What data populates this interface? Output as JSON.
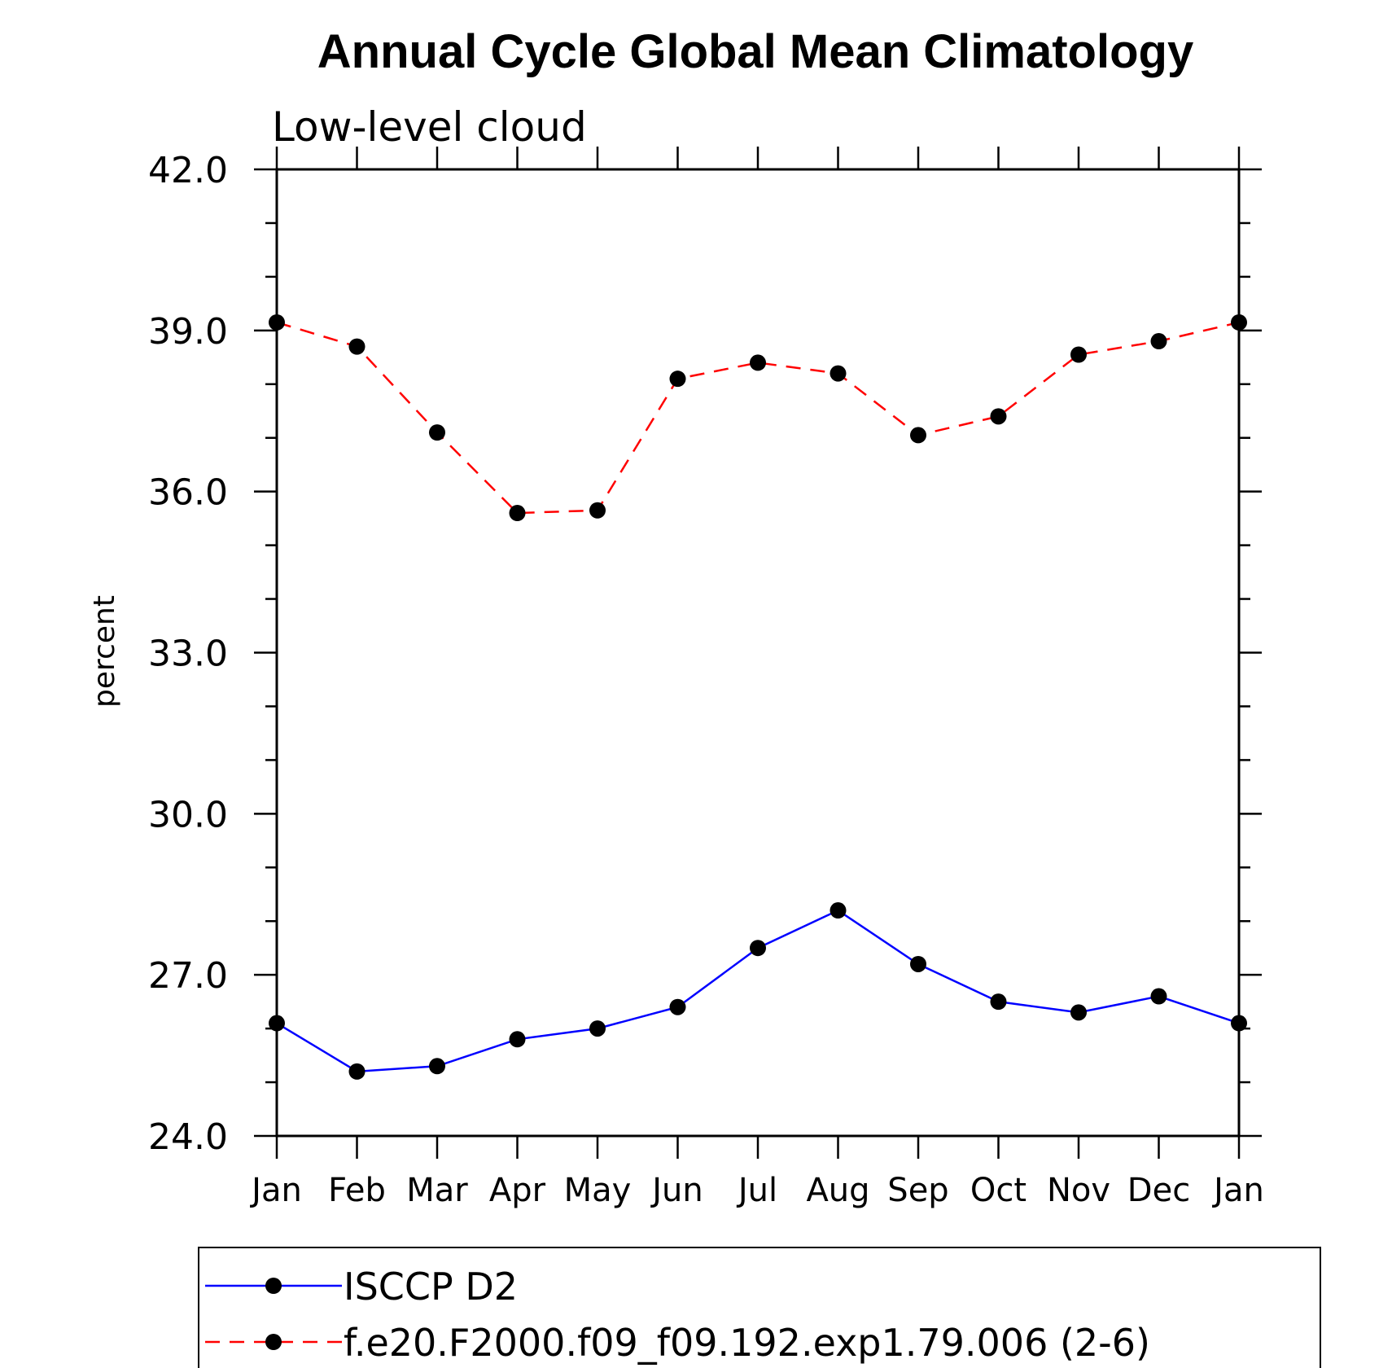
{
  "chart_data": {
    "type": "line",
    "title": "Annual Cycle Global Mean Climatology",
    "subtitle": "Low-level cloud",
    "xlabel": "",
    "ylabel": "percent",
    "categories": [
      "Jan",
      "Feb",
      "Mar",
      "Apr",
      "May",
      "Jun",
      "Jul",
      "Aug",
      "Sep",
      "Oct",
      "Nov",
      "Dec",
      "Jan"
    ],
    "ylim": [
      24.0,
      42.0
    ],
    "yticks": [
      "24.0",
      "27.0",
      "30.0",
      "33.0",
      "36.0",
      "39.0",
      "42.0"
    ],
    "grid": false,
    "legend_position": "bottom",
    "series": [
      {
        "name": "ISCCP D2",
        "color": "#0000ff",
        "line_style": "solid",
        "marker": "filled-circle",
        "values": [
          26.1,
          25.2,
          25.3,
          25.8,
          26.0,
          26.4,
          27.5,
          28.2,
          27.2,
          26.5,
          26.3,
          26.6,
          26.1
        ]
      },
      {
        "name": "f.e20.F2000.f09_f09.192.exp1.79.006 (2-6)",
        "color": "#ff0000",
        "line_style": "dashed",
        "marker": "filled-circle",
        "values": [
          39.15,
          38.7,
          37.1,
          35.6,
          35.65,
          38.1,
          38.4,
          38.2,
          37.05,
          37.4,
          38.55,
          38.8,
          39.15
        ]
      }
    ]
  }
}
